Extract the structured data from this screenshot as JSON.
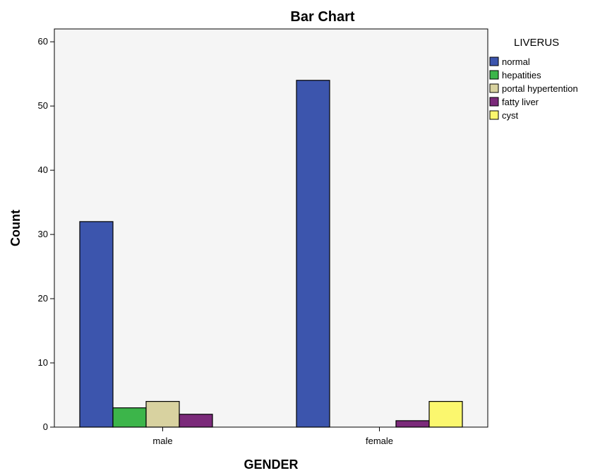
{
  "chart_data": {
    "type": "bar",
    "title": "Bar Chart",
    "xlabel": "GENDER",
    "ylabel": "Count",
    "categories": [
      "male",
      "female"
    ],
    "ylim": [
      0,
      62
    ],
    "yticks": [
      0,
      10,
      20,
      30,
      40,
      50,
      60
    ],
    "grid": false,
    "legend": {
      "title": "LIVERUS",
      "placement": "right"
    },
    "series": [
      {
        "name": "normal",
        "color": "#3c55ad",
        "values": [
          32,
          54
        ]
      },
      {
        "name": "hepatities",
        "color": "#3cb54a",
        "values": [
          3,
          0
        ]
      },
      {
        "name": "portal hypertention",
        "color": "#d8d2a0",
        "values": [
          4,
          0
        ]
      },
      {
        "name": "fatty liver",
        "color": "#7b2a7a",
        "values": [
          2,
          1
        ]
      },
      {
        "name": "cyst",
        "color": "#fbf76e",
        "values": [
          0,
          4
        ]
      }
    ]
  }
}
